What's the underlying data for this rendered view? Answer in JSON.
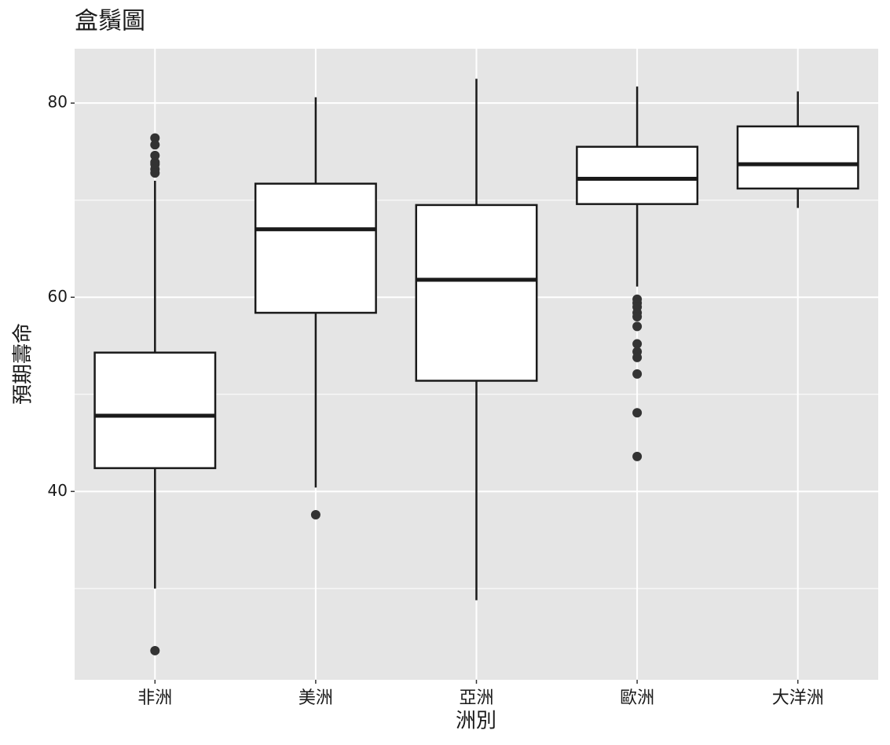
{
  "chart_data": {
    "type": "box",
    "title": "盒鬚圖",
    "x_label": "洲別",
    "y_label": "預期壽命",
    "categories": [
      "非洲",
      "美洲",
      "亞洲",
      "歐洲",
      "大洋洲"
    ],
    "boxes": [
      {
        "min": 30.0,
        "q1": 42.4,
        "median": 47.8,
        "q3": 54.3,
        "max": 72.0,
        "outliers": [
          76.4,
          75.7,
          74.6,
          73.9,
          73.7,
          73.2,
          72.8,
          23.6
        ]
      },
      {
        "min": 40.4,
        "q1": 58.4,
        "median": 67.0,
        "q3": 71.7,
        "max": 80.6,
        "outliers": [
          37.6
        ]
      },
      {
        "min": 28.8,
        "q1": 51.4,
        "median": 61.8,
        "q3": 69.5,
        "max": 82.5,
        "outliers": []
      },
      {
        "min": 61.1,
        "q1": 69.6,
        "median": 72.2,
        "q3": 75.5,
        "max": 81.7,
        "outliers": [
          59.8,
          59.4,
          59.0,
          58.4,
          58.0,
          57.0,
          55.2,
          54.4,
          53.8,
          52.1,
          48.1,
          43.6
        ]
      },
      {
        "min": 69.2,
        "q1": 71.2,
        "median": 73.7,
        "q3": 77.6,
        "max": 81.2,
        "outliers": []
      }
    ],
    "ylim": [
      20.6,
      85.6
    ],
    "yticks": [
      40,
      60,
      80
    ],
    "minor_yticks": [
      30,
      50,
      70
    ],
    "grid": true,
    "panel_color": "#e5e5e5",
    "box_fill": "#ffffff",
    "line_color": "#1a1a1a"
  }
}
